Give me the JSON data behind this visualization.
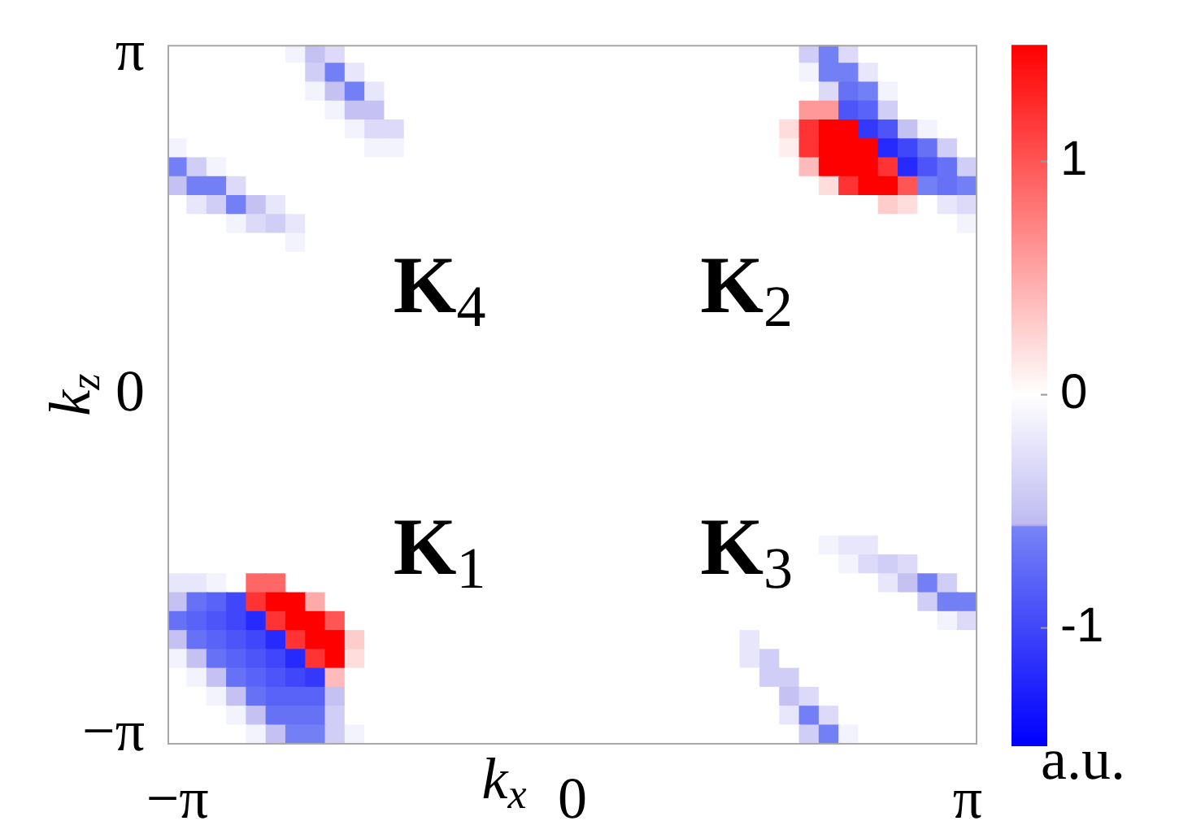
{
  "chart_data": {
    "type": "heatmap",
    "xlabel": "k$_{x}$",
    "ylabel": "k$_{z}$",
    "clabel": "a.u.",
    "clim": [
      -1.5,
      1.5
    ],
    "cticks": [
      -1,
      0,
      1
    ],
    "annotations": [
      "K$_{4}$",
      "K$_{2}$",
      "K$_{1}$",
      "K$_{3}$"
    ],
    "categories": [
      "−π",
      null,
      null,
      null,
      null,
      null,
      null,
      null,
      null,
      null,
      null,
      null,
      null,
      null,
      null,
      null,
      null,
      null,
      null,
      null,
      "0",
      null,
      null,
      null,
      null,
      null,
      null,
      null,
      null,
      null,
      null,
      null,
      null,
      null,
      null,
      null,
      null,
      null,
      null,
      null,
      "π"
    ],
    "y_categories": [
      "π",
      null,
      null,
      null,
      null,
      null,
      null,
      null,
      null,
      null,
      null,
      null,
      null,
      null,
      null,
      null,
      null,
      null,
      "0",
      null,
      null,
      null,
      null,
      null,
      null,
      null,
      null,
      null,
      null,
      null,
      null,
      null,
      null,
      null,
      null,
      null,
      "−π"
    ],
    "cells": [
      [
        0,
        0,
        0,
        0,
        0,
        0,
        -0.1,
        -0.5,
        -0.3,
        0,
        0,
        0,
        0,
        0,
        0,
        0,
        0,
        0,
        0,
        0,
        0,
        0,
        0,
        0,
        0,
        0,
        0,
        0,
        0,
        0,
        0,
        0,
        -0.4,
        -0.6,
        -0.3,
        0,
        0,
        0,
        0,
        0,
        0
      ],
      [
        0,
        0,
        0,
        0,
        0,
        0,
        0,
        -0.4,
        -0.6,
        -0.2,
        0,
        0,
        0,
        0,
        0,
        0,
        0,
        0,
        0,
        0,
        0,
        0,
        0,
        0,
        0,
        0,
        0,
        0,
        0,
        0,
        0,
        0,
        -0.1,
        -0.6,
        -0.6,
        -0.2,
        0,
        0,
        0,
        0,
        0
      ],
      [
        0,
        0,
        0,
        0,
        0,
        0,
        0,
        -0.1,
        -0.5,
        -0.6,
        -0.2,
        0,
        0,
        0,
        0,
        0,
        0,
        0,
        0,
        0,
        0,
        0,
        0,
        0,
        0,
        0,
        0,
        0,
        0,
        0,
        0,
        0,
        0,
        -0.3,
        -0.7,
        -0.6,
        -0.1,
        0,
        0,
        0,
        0
      ],
      [
        0,
        0,
        0,
        0,
        0,
        0,
        0,
        0,
        -0.1,
        -0.5,
        -0.5,
        0,
        0,
        0,
        0,
        0,
        0,
        0,
        0,
        0,
        0,
        0,
        0,
        0,
        0,
        0,
        0,
        0,
        0,
        0,
        0,
        0,
        0.6,
        0.6,
        -0.9,
        -0.8,
        -0.4,
        0,
        0,
        0,
        0
      ],
      [
        0,
        0,
        0,
        0,
        0,
        0,
        0,
        0,
        0,
        -0.1,
        -0.3,
        -0.3,
        0,
        0,
        0,
        0,
        0,
        0,
        0,
        0,
        0,
        0,
        0,
        0,
        0,
        0,
        0,
        0,
        0,
        0,
        0,
        0.2,
        1.2,
        1.5,
        1.5,
        -1.1,
        -0.9,
        -0.5,
        -0.1,
        0,
        0
      ],
      [
        -0.1,
        0,
        0,
        0,
        0,
        0,
        0,
        0,
        0,
        0,
        -0.1,
        -0.1,
        0,
        0,
        0,
        0,
        0,
        0,
        0,
        0,
        0,
        0,
        0,
        0,
        0,
        0,
        0,
        0,
        0,
        0,
        0,
        0.1,
        1.2,
        1.5,
        1.5,
        1.5,
        -1.2,
        -1.0,
        -0.7,
        -0.4,
        0
      ],
      [
        -0.6,
        -0.4,
        -0.1,
        0,
        0,
        0,
        0,
        0,
        0,
        0,
        0,
        0,
        0,
        0,
        0,
        0,
        0,
        0,
        0,
        0,
        0,
        0,
        0,
        0,
        0,
        0,
        0,
        0,
        0,
        0,
        0,
        0,
        0.4,
        1.5,
        1.5,
        1.5,
        1.2,
        -1.2,
        -0.9,
        -0.7,
        -0.4
      ],
      [
        -0.5,
        -0.6,
        -0.6,
        -0.3,
        0,
        0,
        0,
        0,
        0,
        0,
        0,
        0,
        0,
        0,
        0,
        0,
        0,
        0,
        0,
        0,
        0,
        0,
        0,
        0,
        0,
        0,
        0,
        0,
        0,
        0,
        0,
        0,
        0,
        0.2,
        1.2,
        1.5,
        1.5,
        1.0,
        -0.6,
        -0.7,
        -0.6
      ],
      [
        0,
        -0.2,
        -0.4,
        -0.6,
        -0.5,
        -0.2,
        0,
        0,
        0,
        0,
        0,
        0,
        0,
        0,
        0,
        0,
        0,
        0,
        0,
        0,
        0,
        0,
        0,
        0,
        0,
        0,
        0,
        0,
        0,
        0,
        0,
        0,
        0,
        0,
        0,
        0,
        0.3,
        0.2,
        0,
        -0.2,
        -0.3
      ],
      [
        0,
        0,
        0,
        -0.1,
        -0.3,
        -0.4,
        -0.2,
        0,
        0,
        0,
        0,
        0,
        0,
        0,
        0,
        0,
        0,
        0,
        0,
        0,
        0,
        0,
        0,
        0,
        0,
        0,
        0,
        0,
        0,
        0,
        0,
        0,
        0,
        0,
        0,
        0,
        0,
        0,
        0,
        0,
        -0.1
      ],
      [
        0,
        0,
        0,
        0,
        0,
        0,
        -0.1,
        0,
        0,
        0,
        0,
        0,
        0,
        0,
        0,
        0,
        0,
        0,
        0,
        0,
        0,
        0,
        0,
        0,
        0,
        0,
        0,
        0,
        0,
        0,
        0,
        0,
        0,
        0,
        0,
        0,
        0,
        0,
        0,
        0,
        0
      ],
      [
        0,
        0,
        0,
        0,
        0,
        0,
        0,
        0,
        0,
        0,
        0,
        null,
        null,
        null,
        null,
        0,
        0,
        0,
        0,
        0,
        0,
        0,
        0,
        0,
        0,
        0,
        0,
        null,
        null,
        null,
        0,
        0,
        0,
        0,
        0,
        0,
        0,
        0,
        0,
        0,
        0
      ],
      [
        0,
        0,
        0,
        0,
        0,
        0,
        0,
        0,
        0,
        0,
        0,
        null,
        null,
        null,
        null,
        null,
        0,
        0,
        0,
        0,
        0,
        0,
        0,
        0,
        0,
        0,
        0,
        null,
        null,
        null,
        null,
        null,
        0,
        0,
        0,
        0,
        0,
        0,
        0,
        0,
        0
      ],
      [
        0,
        0,
        0,
        0,
        0,
        0,
        0,
        0,
        0,
        0,
        0,
        null,
        null,
        null,
        null,
        null,
        0,
        0,
        0,
        0,
        0,
        0,
        0,
        0,
        0,
        0,
        0,
        null,
        null,
        null,
        null,
        null,
        0,
        0,
        0,
        0,
        0,
        0,
        0,
        0,
        0
      ],
      [
        0,
        0,
        0,
        0,
        0,
        0,
        0,
        0,
        0,
        0,
        0,
        0,
        0,
        0,
        null,
        null,
        0,
        0,
        0,
        0,
        0,
        0,
        0,
        0,
        0,
        0,
        0,
        0,
        0,
        0,
        null,
        null,
        0,
        0,
        0,
        0,
        0,
        0,
        0,
        0,
        0
      ],
      [
        0,
        0,
        0,
        0,
        0,
        0,
        0,
        0,
        0,
        0,
        0,
        0,
        0,
        0,
        0,
        0,
        0,
        0,
        0,
        0,
        0,
        0,
        0,
        0,
        0,
        0,
        0,
        0,
        0,
        0,
        0,
        0,
        0,
        0,
        0,
        0,
        0,
        0,
        0,
        0,
        0
      ],
      [
        0,
        0,
        0,
        0,
        0,
        0,
        0,
        0,
        0,
        0,
        0,
        0,
        0,
        0,
        0,
        0,
        0,
        0,
        0,
        0,
        0,
        0,
        0,
        0,
        0,
        0,
        0,
        0,
        0,
        0,
        0,
        0,
        0,
        0,
        0,
        0,
        0,
        0,
        0,
        0,
        0
      ],
      [
        0,
        0,
        0,
        0,
        0,
        0,
        0,
        0,
        0,
        0,
        0,
        0,
        0,
        0,
        0,
        0,
        0,
        0,
        0,
        0,
        0,
        0,
        0,
        0,
        0,
        0,
        0,
        0,
        0,
        0,
        0,
        0,
        0,
        0,
        0,
        0,
        0,
        0,
        0,
        0,
        0
      ],
      [
        0,
        0,
        0,
        0,
        0,
        0,
        0,
        0,
        0,
        0,
        0,
        0,
        0,
        0,
        0,
        0,
        0,
        0,
        0,
        0,
        0,
        0,
        0,
        0,
        0,
        0,
        0,
        0,
        0,
        0,
        0,
        0,
        0,
        0,
        0,
        0,
        0,
        0,
        0,
        0,
        0
      ],
      [
        0,
        0,
        0,
        0,
        0,
        0,
        0,
        0,
        0,
        0,
        0,
        0,
        0,
        0,
        0,
        0,
        0,
        0,
        0,
        0,
        0,
        0,
        0,
        0,
        0,
        0,
        0,
        0,
        0,
        0,
        0,
        0,
        0,
        0,
        0,
        0,
        0,
        0,
        0,
        0,
        0
      ],
      [
        0,
        0,
        0,
        0,
        0,
        0,
        0,
        0,
        0,
        0,
        0,
        0,
        0,
        0,
        0,
        0,
        0,
        0,
        0,
        0,
        0,
        0,
        0,
        0,
        0,
        0,
        0,
        0,
        0,
        0,
        0,
        0,
        0,
        0,
        0,
        0,
        0,
        0,
        0,
        0,
        0
      ],
      [
        0,
        0,
        0,
        0,
        0,
        0,
        0,
        0,
        0,
        0,
        0,
        0,
        0,
        0,
        0,
        0,
        0,
        0,
        0,
        0,
        0,
        0,
        0,
        0,
        0,
        0,
        0,
        0,
        0,
        0,
        0,
        0,
        0,
        0,
        0,
        0,
        0,
        0,
        0,
        0,
        0
      ],
      [
        0,
        0,
        0,
        0,
        0,
        0,
        0,
        0,
        0,
        0,
        0,
        0,
        0,
        0,
        0,
        0,
        0,
        0,
        0,
        0,
        0,
        0,
        0,
        0,
        0,
        0,
        0,
        0,
        0,
        0,
        0,
        0,
        0,
        0,
        0,
        0,
        0,
        0,
        0,
        0,
        0
      ],
      [
        0,
        0,
        0,
        0,
        0,
        0,
        0,
        0,
        0,
        0,
        0,
        0,
        0,
        0,
        0,
        0,
        0,
        0,
        0,
        0,
        0,
        0,
        0,
        0,
        0,
        0,
        0,
        0,
        0,
        0,
        0,
        0,
        0,
        0,
        0,
        0,
        0,
        0,
        0,
        0,
        0
      ],
      [
        0,
        0,
        0,
        0,
        0,
        0,
        0,
        0,
        0,
        0,
        0,
        0,
        0,
        0,
        0,
        0,
        0,
        0,
        0,
        0,
        0,
        0,
        0,
        0,
        0,
        0,
        0,
        0,
        0,
        0,
        0,
        0,
        0,
        0,
        0,
        0,
        0,
        0,
        0,
        0,
        0
      ],
      [
        0,
        0,
        0,
        0,
        0,
        0,
        0,
        0,
        0,
        0,
        0,
        null,
        null,
        null,
        null,
        0,
        0,
        0,
        0,
        0,
        0,
        0,
        0,
        0,
        0,
        0,
        0,
        null,
        null,
        null,
        0,
        0,
        0,
        0,
        0,
        0,
        0,
        0,
        0,
        0,
        0
      ],
      [
        0,
        0,
        0,
        0,
        0,
        0,
        0,
        0,
        0,
        0,
        0,
        null,
        null,
        null,
        null,
        null,
        0,
        0,
        0,
        0,
        0,
        0,
        0,
        0,
        0,
        0,
        0,
        null,
        null,
        null,
        null,
        null,
        0,
        -0.1,
        -0.2,
        -0.2,
        0,
        0,
        0,
        0,
        0
      ],
      [
        0,
        0,
        0,
        0,
        0,
        0,
        0,
        0,
        0,
        0,
        0,
        null,
        null,
        null,
        null,
        null,
        0,
        0,
        0,
        0,
        0,
        0,
        0,
        0,
        0,
        0,
        0,
        null,
        null,
        null,
        null,
        null,
        0,
        0,
        -0.1,
        -0.3,
        -0.4,
        -0.3,
        0,
        0,
        0
      ],
      [
        -0.2,
        -0.2,
        -0.1,
        0,
        0.9,
        0.9,
        0,
        0,
        0,
        0,
        0,
        0,
        0,
        0,
        null,
        null,
        0,
        0,
        0,
        0,
        0,
        0,
        0,
        0,
        0,
        0,
        0,
        0,
        0,
        0,
        null,
        null,
        0,
        0,
        0,
        0,
        -0.2,
        -0.5,
        -0.6,
        -0.4,
        0
      ],
      [
        -0.5,
        -0.7,
        -0.8,
        -1.0,
        1.2,
        1.5,
        1.5,
        0.5,
        0,
        0,
        0,
        0,
        0,
        0,
        0,
        0,
        0,
        0,
        0,
        0,
        0,
        0,
        0,
        0,
        0,
        0,
        0,
        0,
        0,
        0,
        0,
        0,
        0,
        0,
        0,
        0,
        0,
        0,
        -0.4,
        -0.6,
        -0.6
      ],
      [
        -0.7,
        -0.8,
        -0.9,
        -1.0,
        -1.2,
        1.2,
        1.5,
        1.5,
        1.0,
        0,
        0,
        0,
        0,
        0,
        0,
        0,
        0,
        0,
        0,
        0,
        0,
        0,
        0,
        0,
        0,
        0,
        0,
        0,
        0,
        0,
        0,
        0,
        0,
        0,
        0,
        0,
        0,
        0,
        0,
        -0.1,
        -0.3
      ],
      [
        -0.5,
        -0.7,
        -0.8,
        -0.9,
        -1.0,
        -1.2,
        1.2,
        1.5,
        1.5,
        0.3,
        0,
        0,
        0,
        0,
        0,
        0,
        0,
        0,
        0,
        0,
        0,
        0,
        0,
        0,
        0,
        0,
        0,
        0,
        0,
        -0.2,
        0,
        0,
        0,
        0,
        0,
        0,
        0,
        0,
        0,
        0,
        0
      ],
      [
        -0.1,
        -0.5,
        -0.7,
        -0.8,
        -0.9,
        -1.0,
        -1.2,
        1.2,
        1.5,
        0.2,
        0,
        0,
        0,
        0,
        0,
        0,
        0,
        0,
        0,
        0,
        0,
        0,
        0,
        0,
        0,
        0,
        0,
        0,
        0,
        -0.2,
        -0.4,
        0,
        0,
        0,
        0,
        0,
        0,
        0,
        0,
        0,
        0
      ],
      [
        0,
        -0.1,
        -0.5,
        -0.7,
        -0.8,
        -0.9,
        -1.0,
        -1.1,
        0.4,
        0,
        0,
        0,
        0,
        0,
        0,
        0,
        0,
        0,
        0,
        0,
        0,
        0,
        0,
        0,
        0,
        0,
        0,
        0,
        0,
        0,
        -0.4,
        -0.4,
        0,
        0,
        0,
        0,
        0,
        0,
        0,
        0,
        0
      ],
      [
        0,
        0,
        -0.1,
        -0.5,
        -0.7,
        -0.8,
        -0.8,
        -0.8,
        -0.5,
        0,
        0,
        0,
        0,
        0,
        0,
        0,
        0,
        0,
        0,
        0,
        0,
        0,
        0,
        0,
        0,
        0,
        0,
        0,
        0,
        0,
        0,
        -0.5,
        -0.3,
        0,
        0,
        0,
        0,
        0,
        0,
        0,
        0
      ],
      [
        0,
        0,
        0,
        -0.1,
        -0.5,
        -0.7,
        -0.7,
        -0.7,
        -0.4,
        0,
        0,
        0,
        0,
        0,
        0,
        0,
        0,
        0,
        0,
        0,
        0,
        0,
        0,
        0,
        0,
        0,
        0,
        0,
        0,
        0,
        0,
        -0.2,
        -0.6,
        -0.3,
        0,
        0,
        0,
        0,
        0,
        0,
        0
      ],
      [
        0,
        0,
        0,
        0,
        -0.1,
        -0.5,
        -0.6,
        -0.6,
        -0.4,
        -0.1,
        0,
        0,
        0,
        0,
        0,
        0,
        0,
        0,
        0,
        0,
        0,
        0,
        0,
        0,
        0,
        0,
        0,
        0,
        0,
        0,
        0,
        0,
        -0.4,
        -0.6,
        -0.1,
        0,
        0,
        0,
        0,
        0,
        0
      ]
    ]
  }
}
